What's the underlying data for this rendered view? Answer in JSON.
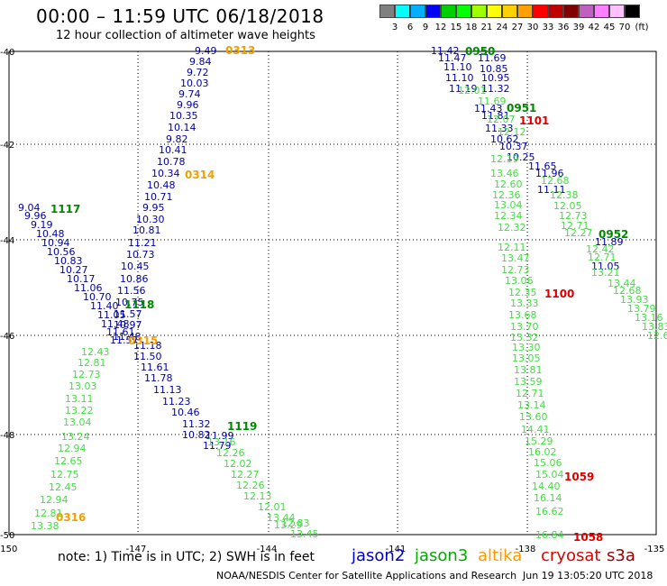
{
  "header": {
    "title": "00:00 – 11:59 UTC 06/18/2018",
    "subtitle": "12 hour collection of altimeter wave heights"
  },
  "color_scale": {
    "unit": "(ft)",
    "cells": [
      {
        "color": "#808080",
        "label": "3"
      },
      {
        "color": "#00ffff",
        "label": "6"
      },
      {
        "color": "#00b0ff",
        "label": "9"
      },
      {
        "color": "#0000ff",
        "label": "12"
      },
      {
        "color": "#00d000",
        "label": "15"
      },
      {
        "color": "#00ff00",
        "label": "18"
      },
      {
        "color": "#a0ff00",
        "label": "21"
      },
      {
        "color": "#ffff00",
        "label": "24"
      },
      {
        "color": "#ffd000",
        "label": "27"
      },
      {
        "color": "#ffa000",
        "label": "30"
      },
      {
        "color": "#ff0000",
        "label": "33"
      },
      {
        "color": "#c00000",
        "label": "36"
      },
      {
        "color": "#800000",
        "label": "39"
      },
      {
        "color": "#c060c0",
        "label": "42"
      },
      {
        "color": "#ff80ff",
        "label": "45"
      },
      {
        "color": "#ffc0ff",
        "label": "70"
      },
      {
        "color": "#000000",
        "label": ""
      }
    ]
  },
  "axes": {
    "x_ticks": [
      "-150",
      "-147",
      "-144",
      "-141",
      "-138",
      "-135"
    ],
    "y_ticks": [
      "-40",
      "-42",
      "-44",
      "-46",
      "-48",
      "-50"
    ]
  },
  "tracks": [
    {
      "name": "jason2-0313",
      "color": "#0000aa",
      "values": [
        "9.49",
        "9.84",
        "9.72",
        "10.03",
        "9.74",
        "9.96",
        "10.35",
        "10.14",
        "9.82",
        "10.41",
        "10.78",
        "10.34",
        "10.48",
        "10.71",
        "9.95",
        "10.30",
        "10.81",
        "11.21",
        "10.73",
        "10.45",
        "10.86",
        "11.56",
        "10.75",
        "11.57",
        "10.97",
        "11.48",
        "11.18",
        "11.50",
        "11.61",
        "11.78",
        "11.13",
        "11.23",
        "10.46",
        "11.32",
        "10.82",
        "11.79",
        "11.99"
      ]
    },
    {
      "name": "jason2-1117",
      "color": "#0000aa",
      "values": [
        "9.04",
        "9.96",
        "9.19",
        "10.48",
        "10.94",
        "10.56",
        "10.83",
        "10.27",
        "10.17",
        "11.06",
        "10.70",
        "11.40",
        "11.05",
        "11.48",
        "11.61",
        "11.57"
      ]
    },
    {
      "name": "jason3-1119",
      "color": "#44dd44",
      "values": [
        "13.16",
        "12.26",
        "12.02",
        "12.27",
        "12.26",
        "12.13",
        "12.01",
        "13.44",
        "13.29",
        "12.83",
        "13.45"
      ]
    },
    {
      "name": "altika-0316",
      "color": "#44dd44",
      "values": [
        "12.43",
        "12.81",
        "12.73",
        "13.03",
        "13.11",
        "13.22",
        "13.04",
        "13.24",
        "12.94",
        "12.65",
        "12.75",
        "12.45",
        "12.94",
        "12.81",
        "13.38"
      ]
    },
    {
      "name": "jason2-0950",
      "color": "#0000aa",
      "values": [
        "11.42",
        "11.47",
        "11.10",
        "11.10",
        "11.19",
        "11.69",
        "10.85",
        "10.95",
        "11.32",
        "11.43",
        "11.81",
        "11.33",
        "10.62",
        "10.37",
        "10.25",
        "11.65",
        "11.96",
        "11.11",
        "11.89",
        "11.05"
      ]
    },
    {
      "name": "jason3-0951",
      "color": "#44dd44",
      "values": [
        "12.01",
        "11.69",
        "12.07",
        "12.12",
        "12.19",
        "13.46",
        "12.60",
        "12.36",
        "13.04",
        "12.34",
        "12.32",
        "12.11",
        "13.47",
        "12.73",
        "13.06",
        "12.35",
        "13.33",
        "13.68",
        "13.70",
        "13.32",
        "13.30",
        "13.05",
        "13.81",
        "13.59",
        "12.71",
        "13.14",
        "13.60",
        "14.41",
        "15.29",
        "16.02",
        "15.06",
        "15.04",
        "14.40",
        "16.14",
        "16.62",
        "16.84"
      ]
    },
    {
      "name": "jason3-0952",
      "color": "#44dd44",
      "values": [
        "12.68",
        "12.38",
        "12.05",
        "12.73",
        "12.71",
        "12.27",
        "12.42",
        "12.71",
        "13.21",
        "13.44",
        "12.68",
        "13.93",
        "13.79",
        "13.16",
        "13.83",
        "12.6"
      ]
    }
  ],
  "time_labels": [
    {
      "text": "0313",
      "color": "#f0a000"
    },
    {
      "text": "0314",
      "color": "#f0a000"
    },
    {
      "text": "1117",
      "color": "#008800"
    },
    {
      "text": "1118",
      "color": "#008800"
    },
    {
      "text": "0315",
      "color": "#f0a000"
    },
    {
      "text": "1119",
      "color": "#008800"
    },
    {
      "text": "0316",
      "color": "#f0a000"
    },
    {
      "text": "0950",
      "color": "#008800"
    },
    {
      "text": "0951",
      "color": "#008800"
    },
    {
      "text": "1101",
      "color": "#dd0000"
    },
    {
      "text": "0952",
      "color": "#008800"
    },
    {
      "text": "1100",
      "color": "#dd0000"
    },
    {
      "text": "1059",
      "color": "#dd0000"
    },
    {
      "text": "1058",
      "color": "#dd0000"
    }
  ],
  "note": "note:  1) Time is in UTC;  2) SWH is in feet",
  "legend": [
    {
      "label": "jason2",
      "color": "#0000cc"
    },
    {
      "label": "jason3",
      "color": "#00aa00"
    },
    {
      "label": "altika",
      "color": "#ff9900"
    },
    {
      "label": "cryosat",
      "color": "#dd0000"
    },
    {
      "label": "s3a",
      "color": "#990000"
    }
  ],
  "footer": "NOAA/NESDIS Center for Satellite Applications and Research",
  "timestamp": "Jun 19 13:05:20 UTC 2018"
}
